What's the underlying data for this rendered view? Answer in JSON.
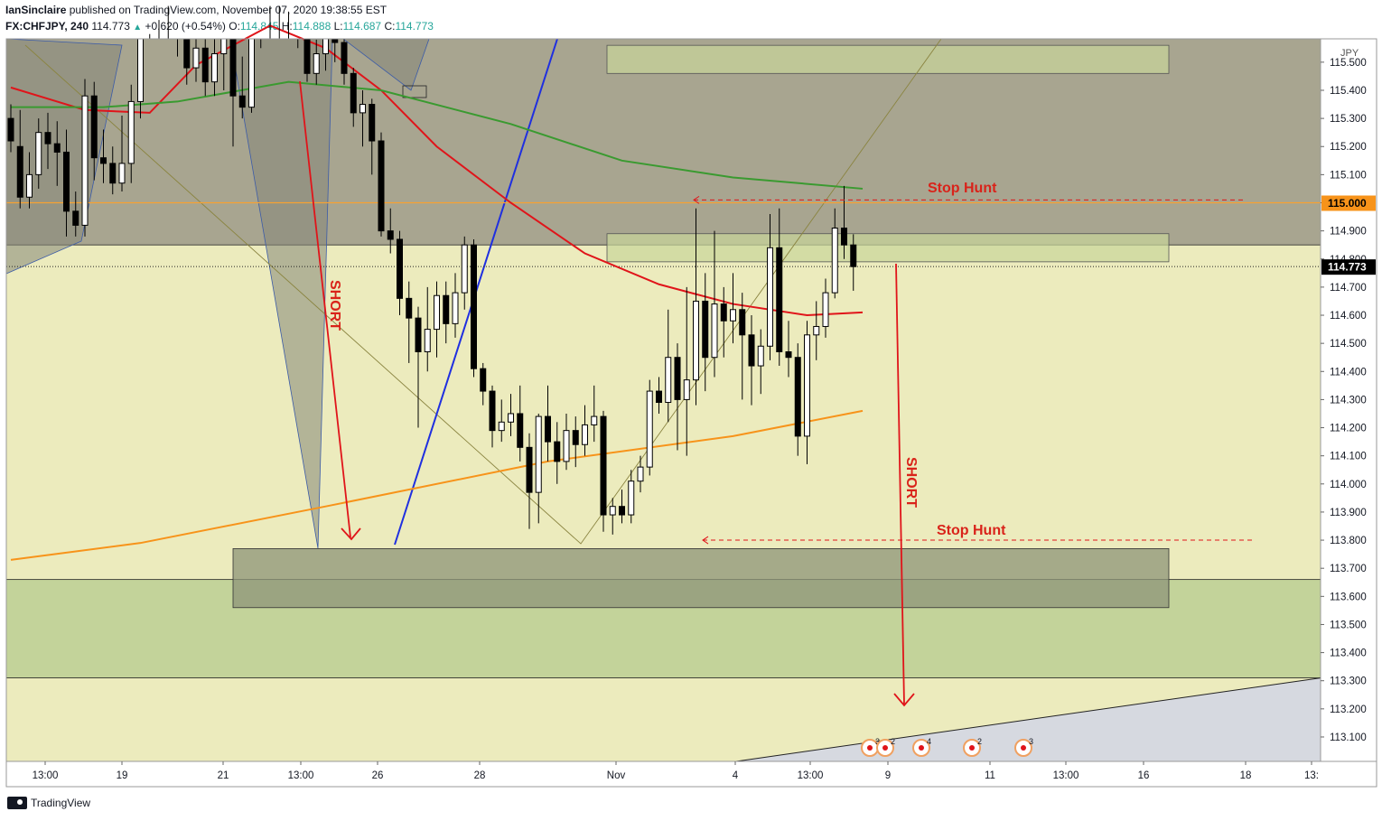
{
  "header": {
    "author": "IanSinclaire",
    "published_text": "published on TradingView.com, November 07, 2020 19:38:55 EST",
    "symbol": "FX:CHFJPY, 240",
    "last": "114.773",
    "change": "+0.620 (+0.54%)",
    "open_label": "O:",
    "open": "114.845",
    "high_label": "H:",
    "high": "114.888",
    "low_label": "L:",
    "low": "114.687",
    "close_label": "C:",
    "close": "114.773"
  },
  "footer": {
    "brand": "TradingView"
  },
  "chart_data": {
    "type": "candlestick",
    "currency": "JPY",
    "ylim": [
      113.0,
      115.6
    ],
    "y_ticks": [
      "115.500",
      "115.400",
      "115.300",
      "115.200",
      "115.100",
      "115.000",
      "114.900",
      "114.800",
      "114.700",
      "114.600",
      "114.500",
      "114.400",
      "114.300",
      "114.200",
      "114.100",
      "114.000",
      "113.900",
      "113.800",
      "113.700",
      "113.600",
      "113.500",
      "113.400",
      "113.300",
      "113.200",
      "113.100"
    ],
    "x_ticks": [
      "13:00",
      "19",
      "21",
      "13:00",
      "26",
      "28",
      "Nov",
      "4",
      "13:00",
      "9",
      "11",
      "13:00",
      "16",
      "18",
      "13:"
    ],
    "price_labels": {
      "level_line": "115.000",
      "last_price": "114.773"
    },
    "candles": [
      [
        115.3,
        115.22,
        115.35,
        115.18
      ],
      [
        115.2,
        115.02,
        115.33,
        114.98
      ],
      [
        115.02,
        115.1,
        115.18,
        114.98
      ],
      [
        115.1,
        115.25,
        115.3,
        115.05
      ],
      [
        115.25,
        115.21,
        115.32,
        115.12
      ],
      [
        115.21,
        115.18,
        115.29,
        115.06
      ],
      [
        115.18,
        114.97,
        115.26,
        114.88
      ],
      [
        114.97,
        114.92,
        115.04,
        114.88
      ],
      [
        114.92,
        115.38,
        115.44,
        114.88
      ],
      [
        115.38,
        115.16,
        115.43,
        115.08
      ],
      [
        115.16,
        115.14,
        115.26,
        115.07
      ],
      [
        115.14,
        115.07,
        115.2,
        115.03
      ],
      [
        115.07,
        115.14,
        115.31,
        115.04
      ],
      [
        115.14,
        115.36,
        115.42,
        115.07
      ],
      [
        115.36,
        115.8,
        115.85,
        115.3
      ],
      [
        115.8,
        115.7,
        115.9,
        115.6
      ],
      [
        115.7,
        115.72,
        115.85,
        115.65
      ],
      [
        115.72,
        115.78,
        115.85,
        115.7
      ],
      [
        115.78,
        115.6,
        115.85,
        115.52
      ],
      [
        115.6,
        115.48,
        115.62,
        115.42
      ],
      [
        115.48,
        115.55,
        115.6,
        115.43
      ],
      [
        115.55,
        115.43,
        115.62,
        115.38
      ],
      [
        115.43,
        115.53,
        115.6,
        115.38
      ],
      [
        115.53,
        115.62,
        115.66,
        115.4
      ],
      [
        115.62,
        115.38,
        115.68,
        115.2
      ],
      [
        115.38,
        115.34,
        115.52,
        115.3
      ],
      [
        115.34,
        115.62,
        115.7,
        115.32
      ],
      [
        115.62,
        115.75,
        115.8,
        115.55
      ],
      [
        115.75,
        115.82,
        115.88,
        115.7
      ],
      [
        115.82,
        115.75,
        115.86,
        115.7
      ],
      [
        115.75,
        115.72,
        115.82,
        115.68
      ],
      [
        115.72,
        115.6,
        115.78,
        115.55
      ],
      [
        115.6,
        115.46,
        115.65,
        115.43
      ],
      [
        115.46,
        115.53,
        115.58,
        115.42
      ],
      [
        115.53,
        115.6,
        115.64,
        115.47
      ],
      [
        115.6,
        115.57,
        115.66,
        115.5
      ],
      [
        115.57,
        115.46,
        115.6,
        115.42
      ],
      [
        115.46,
        115.32,
        115.48,
        115.27
      ],
      [
        115.32,
        115.35,
        115.4,
        115.2
      ],
      [
        115.35,
        115.22,
        115.37,
        115.1
      ],
      [
        115.22,
        114.9,
        115.25,
        114.88
      ],
      [
        114.9,
        114.87,
        114.98,
        114.82
      ],
      [
        114.87,
        114.66,
        114.9,
        114.6
      ],
      [
        114.66,
        114.59,
        114.72,
        114.43
      ],
      [
        114.59,
        114.47,
        114.63,
        114.2
      ],
      [
        114.47,
        114.55,
        114.7,
        114.4
      ],
      [
        114.55,
        114.67,
        114.72,
        114.45
      ],
      [
        114.67,
        114.57,
        114.72,
        114.5
      ],
      [
        114.57,
        114.68,
        114.75,
        114.52
      ],
      [
        114.68,
        114.85,
        114.88,
        114.62
      ],
      [
        114.85,
        114.41,
        114.87,
        114.38
      ],
      [
        114.41,
        114.33,
        114.43,
        114.28
      ],
      [
        114.33,
        114.19,
        114.35,
        114.13
      ],
      [
        114.19,
        114.22,
        114.3,
        114.15
      ],
      [
        114.22,
        114.25,
        114.32,
        114.17
      ],
      [
        114.25,
        114.13,
        114.35,
        114.08
      ],
      [
        114.13,
        113.97,
        114.18,
        113.84
      ],
      [
        113.97,
        114.24,
        114.25,
        113.86
      ],
      [
        114.24,
        114.15,
        114.35,
        114.08
      ],
      [
        114.15,
        114.08,
        114.22,
        114.0
      ],
      [
        114.08,
        114.19,
        114.25,
        114.05
      ],
      [
        114.19,
        114.14,
        114.24,
        114.06
      ],
      [
        114.14,
        114.21,
        114.28,
        114.1
      ],
      [
        114.21,
        114.24,
        114.35,
        114.15
      ],
      [
        114.24,
        113.89,
        114.26,
        113.83
      ],
      [
        113.89,
        113.92,
        113.95,
        113.82
      ],
      [
        113.92,
        113.89,
        113.98,
        113.86
      ],
      [
        113.89,
        114.01,
        114.05,
        113.86
      ],
      [
        114.01,
        114.06,
        114.1,
        113.97
      ],
      [
        114.06,
        114.33,
        114.37,
        114.03
      ],
      [
        114.33,
        114.29,
        114.38,
        114.25
      ],
      [
        114.29,
        114.45,
        114.62,
        114.22
      ],
      [
        114.45,
        114.3,
        114.5,
        114.12
      ],
      [
        114.3,
        114.37,
        114.7,
        114.1
      ],
      [
        114.37,
        114.65,
        114.98,
        114.28
      ],
      [
        114.65,
        114.45,
        114.75,
        114.33
      ],
      [
        114.45,
        114.64,
        114.9,
        114.38
      ],
      [
        114.64,
        114.58,
        114.7,
        114.45
      ],
      [
        114.58,
        114.62,
        114.75,
        114.5
      ],
      [
        114.62,
        114.53,
        114.68,
        114.3
      ],
      [
        114.53,
        114.42,
        114.6,
        114.28
      ],
      [
        114.42,
        114.49,
        114.55,
        114.32
      ],
      [
        114.49,
        114.84,
        114.96,
        114.44
      ],
      [
        114.84,
        114.47,
        114.98,
        114.42
      ],
      [
        114.47,
        114.45,
        114.58,
        114.38
      ],
      [
        114.45,
        114.17,
        114.5,
        114.1
      ],
      [
        114.17,
        114.53,
        114.58,
        114.07
      ],
      [
        114.53,
        114.56,
        114.65,
        114.44
      ],
      [
        114.56,
        114.68,
        114.73,
        114.52
      ],
      [
        114.68,
        114.91,
        114.98,
        114.66
      ],
      [
        114.91,
        114.85,
        115.06,
        114.8
      ],
      [
        114.85,
        114.773,
        114.888,
        114.687
      ]
    ],
    "overlays": [
      {
        "kind": "moving-average",
        "color": "#e0141a",
        "values": [
          [
            0,
            115.41
          ],
          [
            8,
            115.33
          ],
          [
            15,
            115.32
          ],
          [
            20,
            115.49
          ],
          [
            28,
            115.63
          ],
          [
            34,
            115.55
          ],
          [
            40,
            115.4
          ],
          [
            46,
            115.2
          ],
          [
            54,
            115.0
          ],
          [
            62,
            114.82
          ],
          [
            70,
            114.71
          ],
          [
            78,
            114.64
          ],
          [
            86,
            114.6
          ],
          [
            92,
            114.61
          ]
        ]
      },
      {
        "kind": "moving-average",
        "color": "#3a9a30",
        "values": [
          [
            0,
            115.34
          ],
          [
            10,
            115.34
          ],
          [
            18,
            115.36
          ],
          [
            30,
            115.43
          ],
          [
            40,
            115.4
          ],
          [
            54,
            115.28
          ],
          [
            66,
            115.15
          ],
          [
            78,
            115.09
          ],
          [
            92,
            115.05
          ]
        ]
      },
      {
        "kind": "moving-average",
        "color": "#f7931a",
        "values": [
          [
            0,
            113.73
          ],
          [
            14,
            113.79
          ],
          [
            34,
            113.92
          ],
          [
            58,
            114.08
          ],
          [
            78,
            114.17
          ],
          [
            92,
            114.26
          ]
        ]
      }
    ],
    "levels": [
      {
        "price": 115.0,
        "color": "#f7a233",
        "label": "115.000"
      },
      {
        "price": 114.773,
        "style": "dotted",
        "label": "114.773"
      }
    ],
    "zones": [
      {
        "from": 115.46,
        "to": 115.56,
        "color": "#c9d69a"
      },
      {
        "from": 114.79,
        "to": 114.89,
        "color": "#c9d69a"
      },
      {
        "from": 113.56,
        "to": 113.77,
        "color": "#8e9478"
      },
      {
        "from": 113.31,
        "to": 113.66,
        "color": "#c3d39a"
      }
    ],
    "annotations": [
      {
        "text": "SHORT",
        "orientation": "vertical"
      },
      {
        "text": "SHORT",
        "orientation": "vertical"
      },
      {
        "text": "Stop Hunt"
      },
      {
        "text": "Stop Hunt"
      }
    ],
    "event_badges": [
      "3",
      "2",
      "4",
      "2",
      "3"
    ]
  }
}
